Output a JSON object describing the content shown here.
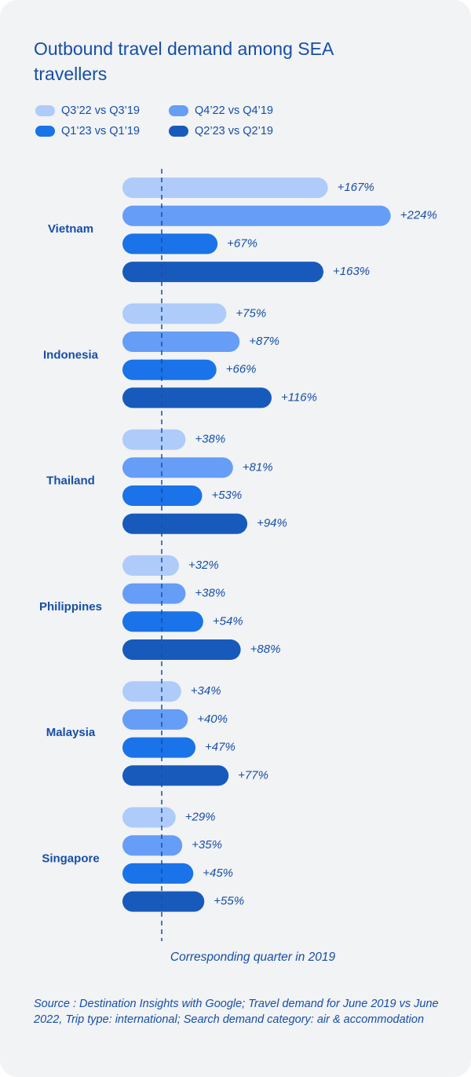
{
  "chart_data": {
    "type": "bar",
    "orientation": "horizontal",
    "title": "Outbound travel demand among SEA travellers",
    "annotation": "Corresponding quarter in 2019",
    "source": "Source : Destination Insights with Google; Travel demand for June 2019 vs June 2022, Trip type: international; Search demand category: air & accommodation",
    "categories": [
      "Vietnam",
      "Indonesia",
      "Thailand",
      "Philippines",
      "Malaysia",
      "Singapore"
    ],
    "series": [
      {
        "name": "Q3’22 vs Q3’19",
        "color": "#aecbfa",
        "values": [
          167,
          75,
          38,
          32,
          34,
          29
        ],
        "value_labels": [
          "+167%",
          "+75%",
          "+38%",
          "+32%",
          "+34%",
          "+29%"
        ]
      },
      {
        "name": "Q4’22 vs Q4’19",
        "color": "#669df6",
        "values": [
          224,
          87,
          81,
          38,
          40,
          35
        ],
        "value_labels": [
          "+224%",
          "+87%",
          "+81%",
          "+38%",
          "+40%",
          "+35%"
        ]
      },
      {
        "name": "Q1’23 vs Q1’19",
        "color": "#1a73e8",
        "values": [
          67,
          66,
          53,
          54,
          47,
          45
        ],
        "value_labels": [
          "+67%",
          "+66%",
          "+53%",
          "+54%",
          "+47%",
          "+45%"
        ]
      },
      {
        "name": "Q2’23 vs Q2’19",
        "color": "#185abc",
        "values": [
          163,
          116,
          94,
          88,
          77,
          55
        ],
        "value_labels": [
          "+163%",
          "+116%",
          "+94%",
          "+88%",
          "+77%",
          "+55%"
        ]
      }
    ]
  }
}
